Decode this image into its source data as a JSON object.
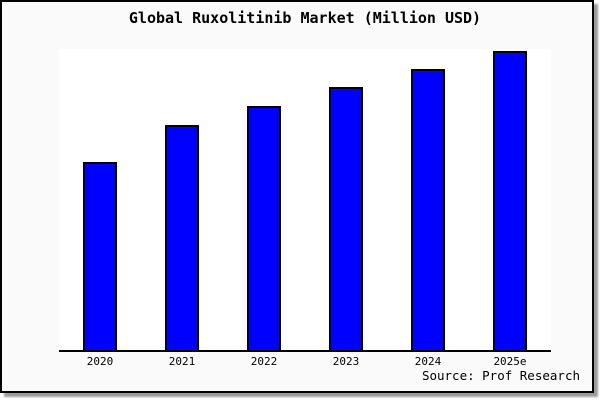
{
  "figure": {
    "title": "Global Ruxolitinib Market (Million USD)",
    "source_label": "Source: Prof Research"
  },
  "chart_data": {
    "type": "bar",
    "title": "Global Ruxolitinib Market (Million USD)",
    "categories": [
      "2020",
      "2021",
      "2022",
      "2023",
      "2024",
      "2025e"
    ],
    "values": [
      62.5,
      74.8,
      81.1,
      87.4,
      93.4,
      99.3
    ],
    "values_note": "No numeric y-axis is shown in the chart; values are estimated bar heights as a percentage of the plot height (2025e is tallest, nearly reaching the plot top)",
    "xlabel": "",
    "ylabel": "",
    "ylim": [
      0,
      100
    ],
    "y_axis_hidden": true,
    "grid": false,
    "legend": null,
    "annotations": [
      "Source: Prof Research"
    ]
  },
  "colors": {
    "bar_fill": "#0000ff",
    "bar_border": "#000000",
    "figure_bg": "#fafafa",
    "plot_bg": "#ffffff",
    "figure_border": "#000000",
    "shadow": "#9a9a9a",
    "text": "#000000"
  }
}
